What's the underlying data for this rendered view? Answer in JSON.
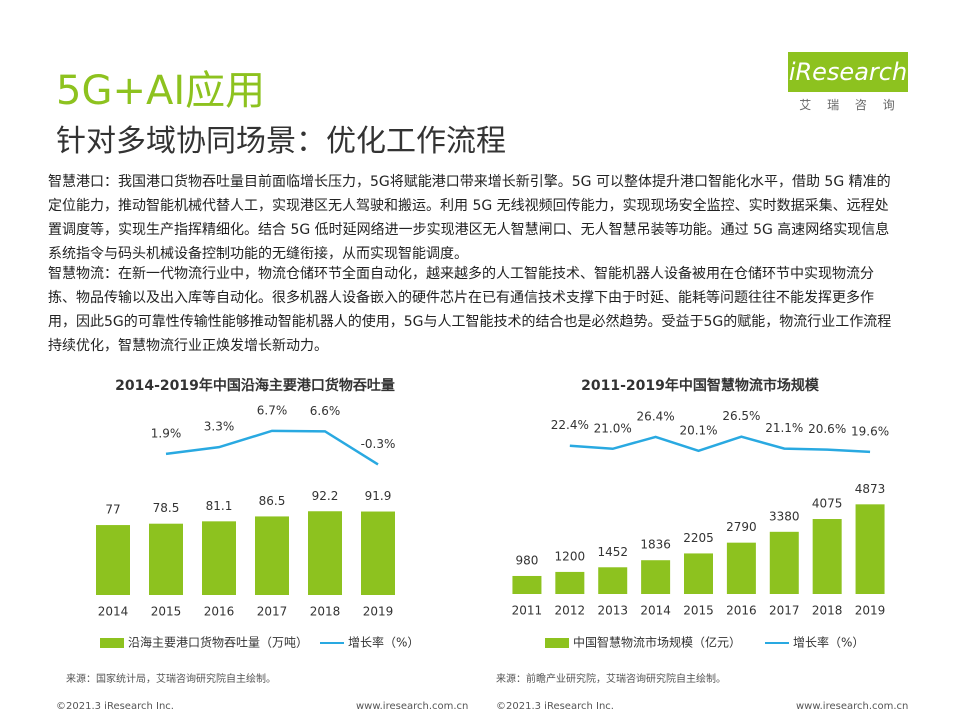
{
  "header": {
    "title": "5G+AI应用",
    "subtitle": "针对多域协同场景：优化工作流程"
  },
  "logo": {
    "name": "iResearch",
    "tagline": "艾 瑞 咨 询"
  },
  "paragraphs": [
    "智慧港口：我国港口货物吞吐量目前面临增长压力，5G将赋能港口带来增长新引擎。5G 可以整体提升港口智能化水平，借助 5G 精准的定位能力，推动智能机械代替人工，实现港区无人驾驶和搬运。利用 5G 无线视频回传能力，实现现场安全监控、实时数据采集、远程处置调度等，实现生产指挥精细化。结合 5G 低时延网络进一步实现港区无人智慧闸口、无人智慧吊装等功能。通过 5G 高速网络实现信息系统指令与码头机械设备控制功能的无缝衔接，从而实现智能调度。",
    "智慧物流：在新一代物流行业中，物流仓储环节全面自动化，越来越多的人工智能技术、智能机器人设备被用在仓储环节中实现物流分拣、物品传输以及出入库等自动化。很多机器人设备嵌入的硬件芯片在已有通信技术支撑下由于时延、能耗等问题往往不能发挥更多作用，因此5G的可靠性传输性能够推动智能机器人的使用，5G与人工智能技术的结合也是必然趋势。受益于5G的赋能，物流行业工作流程持续优化，智慧物流行业正焕发增长新动力。"
  ],
  "chart_data": [
    {
      "type": "bar",
      "title": "2014-2019年中国沿海主要港口货物吞吐量",
      "categories": [
        "2014",
        "2015",
        "2016",
        "2017",
        "2018",
        "2019"
      ],
      "series": [
        {
          "name": "沿海主要港口货物吞吐量（万吨）",
          "color": "#8dc21f",
          "values": [
            77,
            78.5,
            81.1,
            86.5,
            92.2,
            91.9
          ]
        },
        {
          "name": "增长率（%）",
          "color": "#29a9e1",
          "axis": "y2",
          "type": "line",
          "values": [
            null,
            1.9,
            3.3,
            6.7,
            6.6,
            -0.3
          ],
          "value_labels": [
            null,
            "1.9%",
            "3.3%",
            "6.7%",
            "6.6%",
            "-0.3%"
          ]
        }
      ],
      "ylim": [
        0,
        120
      ],
      "y2lim": [
        -27.5,
        12.5
      ],
      "source": "来源：国家统计局，艾瑞咨询研究院自主绘制。"
    },
    {
      "type": "bar",
      "title": "2011-2019年中国智慧物流市场规模",
      "categories": [
        "2011",
        "2012",
        "2013",
        "2014",
        "2015",
        "2016",
        "2017",
        "2018",
        "2019"
      ],
      "series": [
        {
          "name": "中国智慧物流市场规模（亿元）",
          "color": "#8dc21f",
          "values": [
            980,
            1200,
            1452,
            1836,
            2205,
            2790,
            3380,
            4075,
            4873
          ]
        },
        {
          "name": "增长率（%）",
          "color": "#29a9e1",
          "axis": "y2",
          "type": "line",
          "values": [
            null,
            22.4,
            21.0,
            26.4,
            20.1,
            26.5,
            21.1,
            20.6,
            19.6
          ],
          "value_labels": [
            null,
            "22.4%",
            "21.0%",
            "26.4%",
            "20.1%",
            "26.5%",
            "21.1%",
            "20.6%",
            "19.6%"
          ]
        }
      ],
      "ylim": [
        0,
        5000
      ],
      "y2lim": [
        -45,
        45
      ],
      "source": "来源：前瞻产业研究院，艾瑞咨询研究院自主绘制。"
    }
  ],
  "footer": {
    "copyright": "©2021.3 iResearch Inc.",
    "url": "www.iresearch.com.cn"
  }
}
